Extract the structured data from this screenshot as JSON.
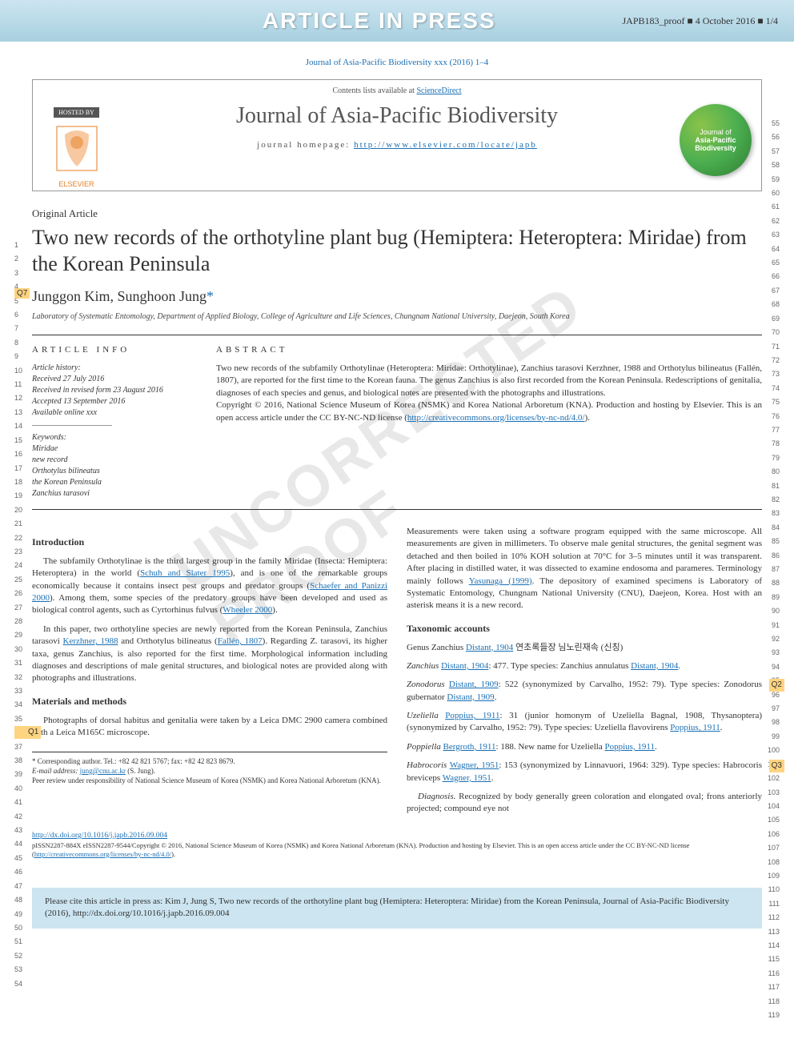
{
  "banner": {
    "title": "ARTICLE IN PRESS",
    "proof": "JAPB183_proof ■ 4 October 2016 ■ 1/4",
    "bg_gradient_top": "#cce5f0",
    "bg_gradient_bottom": "#a8d0e0"
  },
  "journal_ref": "Journal of Asia-Pacific Biodiversity xxx (2016) 1–4",
  "header": {
    "contents_line_prefix": "Contents lists available at ",
    "contents_link": "ScienceDirect",
    "hosted_by": "HOSTED BY",
    "elsevier": "ELSEVIER",
    "journal_title": "Journal of Asia-Pacific Biodiversity",
    "homepage_prefix": "journal homepage: ",
    "homepage_url": "http://www.elsevier.com/locate/japb",
    "badge_line1": "Journal of",
    "badge_line2": "Asia-Pacific",
    "badge_line3": "Biodiversity"
  },
  "article": {
    "type": "Original Article",
    "title": "Two new records of the orthotyline plant bug (Hemiptera: Heteroptera: Miridae) from the Korean Peninsula",
    "q_author": "Q7",
    "authors_plain": "Junggon Kim, Sunghoon Jung",
    "author1": "Junggon Kim, ",
    "author2": "Sunghoon Jung",
    "corr_mark": "*",
    "affiliation": "Laboratory of Systematic Entomology, Department of Applied Biology, College of Agriculture and Life Sciences, Chungnam National University, Daejeon, South Korea"
  },
  "info": {
    "label": "ARTICLE INFO",
    "history_hdr": "Article history:",
    "received": "Received 27 July 2016",
    "revised": "Received in revised form 23 August 2016",
    "accepted": "Accepted 13 September 2016",
    "online": "Available online xxx",
    "keywords_hdr": "Keywords:",
    "kw1": "Miridae",
    "kw2": "new record",
    "kw3": "Orthotylus bilineatus",
    "kw4": "the Korean Peninsula",
    "kw5": "Zanchius tarasovi"
  },
  "abstract": {
    "label": "ABSTRACT",
    "p1": "Two new records of the subfamily Orthotylinae (Heteroptera: Miridae: Orthotylinae), Zanchius tarasovi Kerzhner, 1988 and Orthotylus bilineatus (Fallén, 1807), are reported for the first time to the Korean fauna. The genus Zanchius is also first recorded from the Korean Peninsula. Redescriptions of genitalia, diagnoses of each species and genus, and biological notes are presented with the photographs and illustrations.",
    "p2_prefix": "Copyright © 2016, National Science Museum of Korea (NSMK) and Korea National Arboretum (KNA). Production and hosting by Elsevier. This is an open access article under the CC BY-NC-ND license (",
    "p2_link": "http://creativecommons.org/licenses/by-nc-nd/4.0/",
    "p2_suffix": ")."
  },
  "body": {
    "intro_hdr": "Introduction",
    "intro_p1_a": "The subfamily Orthotylinae is the third largest group in the family Miridae (Insecta: Hemiptera: Heteroptera) in the world (",
    "intro_p1_ref1": "Schuh and Slater 1995",
    "intro_p1_b": "), and is one of the remarkable groups economically because it contains insect pest groups and predator groups (",
    "intro_p1_ref2": "Schaefer and Panizzi 2000",
    "intro_p1_c": "). Among them, some species of the predatory groups have been developed and used as biological control agents, such as Cyrtorhinus fulvus (",
    "intro_p1_ref3": "Wheeler 2000",
    "intro_p1_d": ").",
    "intro_p2_a": "In this paper, two orthotyline species are newly reported from the Korean Peninsula, Zanchius tarasovi ",
    "intro_p2_ref1": "Kerzhner, 1988",
    "intro_p2_b": " and Orthotylus bilineatus (",
    "intro_p2_ref2": "Fallén, 1807",
    "intro_p2_c": "). Regarding Z. tarasovi, its higher taxa, genus Zanchius, is also reported for the first time. Morphological information including diagnoses and descriptions of male genital structures, and biological notes are provided along with photographs and illustrations.",
    "mm_hdr": "Materials and methods",
    "mm_p1": "Photographs of dorsal habitus and genitalia were taken by a Leica DMC 2900 camera combined with a Leica M165C microscope.",
    "q1": "Q1",
    "col2_p1_a": "Measurements were taken using a software program equipped with the same microscope. All measurements are given in millimeters. To observe male genital structures, the genital segment was detached and then boiled in 10% KOH solution at 70°C for 3–5 minutes until it was transparent. After placing in distilled water, it was dissected to examine endosoma and parameres. Terminology mainly follows ",
    "col2_p1_ref": "Yasunaga (1999)",
    "col2_p1_b": ". The depository of examined specimens is Laboratory of Systematic Entomology, Chungnam National University (CNU), Daejeon, Korea. Host with an asterisk means it is a new record.",
    "tax_hdr": "Taxonomic accounts",
    "tax_l1_a": "Genus Zanchius ",
    "tax_l1_ref": "Distant, 1904",
    "tax_l1_b": " 연초록들장 님노린재속 (신칭)",
    "tax_l2_a": "Zanchius ",
    "tax_l2_ref": "Distant, 1904",
    "tax_l2_b": ": 477. Type species: Zanchius annulatus ",
    "tax_l2_ref2": "Distant, 1904",
    "tax_l2_c": ".",
    "tax_l3_a": "Zonodorus ",
    "tax_l3_ref": "Distant, 1909",
    "tax_l3_b": ": 522 (synonymized by Carvalho, 1952: 79). Type species: Zonodorus gubernator ",
    "tax_l3_ref2": "Distant, 1909",
    "tax_l3_c": ".",
    "q2": "Q2",
    "tax_l4_a": "Uzeliella ",
    "tax_l4_ref": "Poppius, 1911",
    "tax_l4_b": ": 31 (junior homonym of Uzeliella Bagnal, 1908, Thysanoptera) (synonymized by Carvalho, 1952: 79). Type species: Uzeliella flavovirens ",
    "tax_l4_ref2": "Poppius, 1911",
    "tax_l4_c": ".",
    "tax_l5_a": "Poppiella ",
    "tax_l5_ref": "Bergroth, 1911",
    "tax_l5_b": ": 188. New name for Uzeliella ",
    "tax_l5_ref2": "Poppius, 1911",
    "tax_l5_c": ".",
    "tax_l6_a": "Habrocoris ",
    "tax_l6_ref": "Wagner, 1951",
    "tax_l6_b": ": 153 (synonymized by Linnavuori, 1964: 329). Type species: Habrocoris breviceps ",
    "tax_l6_ref2": "Wagner, 1951",
    "tax_l6_c": ".",
    "q3": "Q3",
    "diag_hdr": "Diagnosis.",
    "diag_txt": " Recognized by body generally green coloration and elongated oval; frons anteriorly projected; compound eye not"
  },
  "footnotes": {
    "corr": "* Corresponding author. Tel.: +82 42 821 5767; fax: +82 42 823 8679.",
    "email_lbl": "E-mail address: ",
    "email": "jung@cnu.ac.kr",
    "email_suffix": " (S. Jung).",
    "peer": "Peer review under responsibility of National Science Museum of Korea (NSMK) and Korea National Arboretum (KNA)."
  },
  "doi": {
    "url": "http://dx.doi.org/10.1016/j.japb.2016.09.004",
    "issn_a": "pISSN2287-884X eISSN2287-9544/Copyright © 2016, National Science Museum of Korea (NSMK) and Korea National Arboretum (KNA). Production and hosting by Elsevier. This is an open access article under the CC BY-NC-ND license (",
    "issn_link": "http://creativecommons.org/licenses/by-nc-nd/4.0/",
    "issn_b": ")."
  },
  "cite_box": "Please cite this article in press as: Kim J, Jung S, Two new records of the orthotyline plant bug (Hemiptera: Heteroptera: Miridae) from the Korean Peninsula, Journal of Asia-Pacific Biodiversity (2016), http://dx.doi.org/10.1016/j.japb.2016.09.004",
  "line_numbers": {
    "left_start": 1,
    "left_end": 54,
    "right_start": 55,
    "right_end": 119
  },
  "watermark": "UNCORRECTED PROOF",
  "colors": {
    "link": "#1a6fb3",
    "banner_bg": "#cce5f0",
    "highlight": "#ffd480",
    "badge_green": "#4caf50"
  }
}
